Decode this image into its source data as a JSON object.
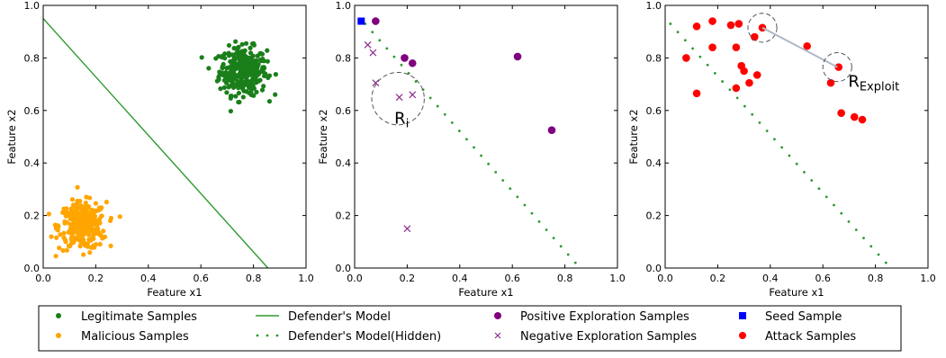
{
  "colors": {
    "legitimate": "#1a7f1a",
    "malicious": "#ffa500",
    "model_line": "#2e9a2e",
    "positive": "#800080",
    "negative": "#8b2c8b",
    "seed": "#0000ff",
    "attack": "#ff0000",
    "axis": "#000000",
    "circle": "#555555"
  },
  "chart_data": [
    {
      "type": "scatter",
      "title": "",
      "xlabel": "Feature x1",
      "ylabel": "Feature x2",
      "xlim": [
        0,
        1
      ],
      "ylim": [
        0,
        1
      ],
      "xticks": [
        "0.0",
        "0.2",
        "0.4",
        "0.6",
        "0.8",
        "1.0"
      ],
      "yticks": [
        "0.0",
        "0.2",
        "0.4",
        "0.6",
        "0.8",
        "1.0"
      ],
      "grid": false,
      "clusters": [
        {
          "name": "Legitimate Samples",
          "center": [
            0.76,
            0.75
          ],
          "spread": [
            0.045,
            0.045
          ],
          "count": 320
        },
        {
          "name": "Malicious Samples",
          "center": [
            0.15,
            0.16
          ],
          "spread": [
            0.045,
            0.045
          ],
          "count": 300
        }
      ],
      "lines": [
        {
          "name": "Defender's Model",
          "x": [
            0.0,
            0.855
          ],
          "y": [
            0.95,
            0.0
          ]
        }
      ]
    },
    {
      "type": "scatter",
      "title": "",
      "xlabel": "Feature x1",
      "ylabel": "Feature x2",
      "xlim": [
        0,
        1
      ],
      "ylim": [
        0,
        1
      ],
      "xticks": [
        "0.0",
        "0.2",
        "0.4",
        "0.6",
        "0.8",
        "1.0"
      ],
      "yticks": [
        "0.0",
        "0.2",
        "0.4",
        "0.6",
        "0.8",
        "1.0"
      ],
      "grid": false,
      "hidden_model": {
        "name": "Defender's Model(Hidden)",
        "x0": 0.04,
        "y0": 0.93,
        "x1": 0.84,
        "y1": 0.02,
        "points": 30
      },
      "series": [
        {
          "name": "Seed Sample",
          "marker": "square",
          "x": [
            0.025
          ],
          "y": [
            0.94
          ]
        },
        {
          "name": "Positive Exploration Samples",
          "marker": "circle",
          "x": [
            0.08,
            0.19,
            0.22,
            0.62,
            0.75
          ],
          "y": [
            0.94,
            0.8,
            0.78,
            0.805,
            0.525
          ]
        },
        {
          "name": "Negative Exploration Samples",
          "marker": "x",
          "x": [
            0.05,
            0.07,
            0.08,
            0.17,
            0.22,
            0.2
          ],
          "y": [
            0.85,
            0.82,
            0.705,
            0.65,
            0.66,
            0.15
          ]
        }
      ],
      "annotations": [
        {
          "label_main": "R",
          "label_sub": "i",
          "center": [
            0.165,
            0.645
          ],
          "radius": 0.1
        }
      ]
    },
    {
      "type": "scatter",
      "title": "",
      "xlabel": "Feature x1",
      "ylabel": "Feature x2",
      "xlim": [
        0,
        1
      ],
      "ylim": [
        0,
        1
      ],
      "xticks": [
        "0.0",
        "0.2",
        "0.4",
        "0.6",
        "0.8",
        "1.0"
      ],
      "yticks": [
        "0.0",
        "0.2",
        "0.4",
        "0.6",
        "0.8",
        "1.0"
      ],
      "grid": false,
      "hidden_model": {
        "name": "Defender's Model(Hidden)",
        "x0": 0.02,
        "y0": 0.93,
        "x1": 0.84,
        "y1": 0.02,
        "points": 30
      },
      "series": [
        {
          "name": "Attack Samples",
          "marker": "circle",
          "x": [
            0.08,
            0.12,
            0.12,
            0.18,
            0.18,
            0.25,
            0.27,
            0.27,
            0.28,
            0.29,
            0.3,
            0.32,
            0.34,
            0.35,
            0.37,
            0.54,
            0.63,
            0.66,
            0.67,
            0.72,
            0.75
          ],
          "y": [
            0.8,
            0.92,
            0.665,
            0.94,
            0.84,
            0.925,
            0.84,
            0.685,
            0.93,
            0.77,
            0.75,
            0.705,
            0.88,
            0.735,
            0.915,
            0.845,
            0.705,
            0.765,
            0.59,
            0.575,
            0.565
          ]
        }
      ],
      "annotations": [
        {
          "label_main": "R",
          "label_sub": "Exploit",
          "center": [
            0.37,
            0.915
          ],
          "radius": 0.055,
          "segment_to": [
            0.655,
            0.765
          ],
          "second_center": [
            0.655,
            0.765
          ]
        }
      ]
    }
  ],
  "legend": {
    "items": [
      {
        "label": "Legitimate Samples",
        "marker": "dot-green"
      },
      {
        "label": "Malicious Samples",
        "marker": "dot-orange"
      },
      {
        "label": "Defender's Model",
        "marker": "line-green"
      },
      {
        "label": "Defender's Model(Hidden)",
        "marker": "dots-green"
      },
      {
        "label": "Positive Exploration Samples",
        "marker": "dot-purple"
      },
      {
        "label": "Negative Exploration Samples",
        "marker": "x-purple"
      },
      {
        "label": "Seed Sample",
        "marker": "square-blue"
      },
      {
        "label": "Attack Samples",
        "marker": "dot-red"
      }
    ]
  }
}
